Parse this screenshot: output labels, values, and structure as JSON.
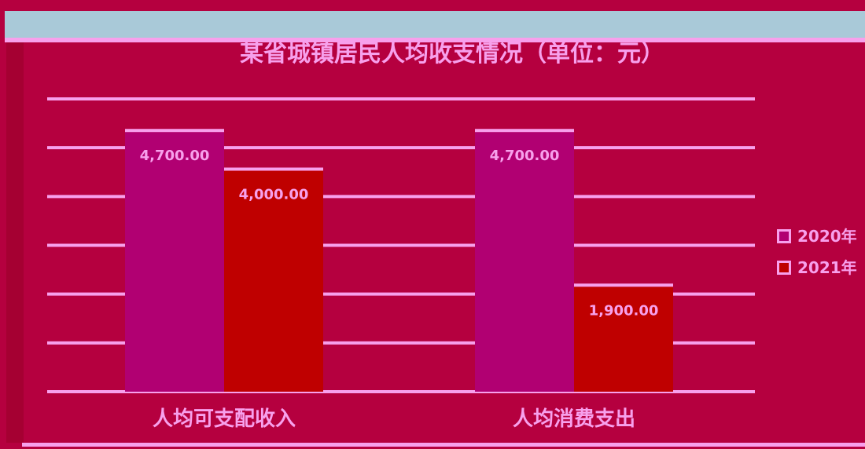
{
  "colors": {
    "background": "#b5003f",
    "panel": "#b2003f",
    "title_band": "#a9c9d8",
    "gridline": "#f7a0ec",
    "text": "#f7a0ec",
    "series_2020": "#b10072",
    "series_2021": "#bf0000",
    "left_edge": "#a50032"
  },
  "chart_data": {
    "type": "bar",
    "title": "某省城镇居民人均收支情况（单位：元）",
    "categories": [
      "人均可支配收入",
      "人均消费支出"
    ],
    "series": [
      {
        "name": "2020年",
        "values": [
          4700,
          4700
        ]
      },
      {
        "name": "2021年",
        "values": [
          4000,
          1900
        ]
      }
    ],
    "data_labels": [
      [
        "4,700.00",
        "4,700.00"
      ],
      [
        "4,000.00",
        "1,900.00"
      ]
    ],
    "ylim": [
      0,
      5300
    ],
    "grid": true,
    "legend_position": "right"
  }
}
